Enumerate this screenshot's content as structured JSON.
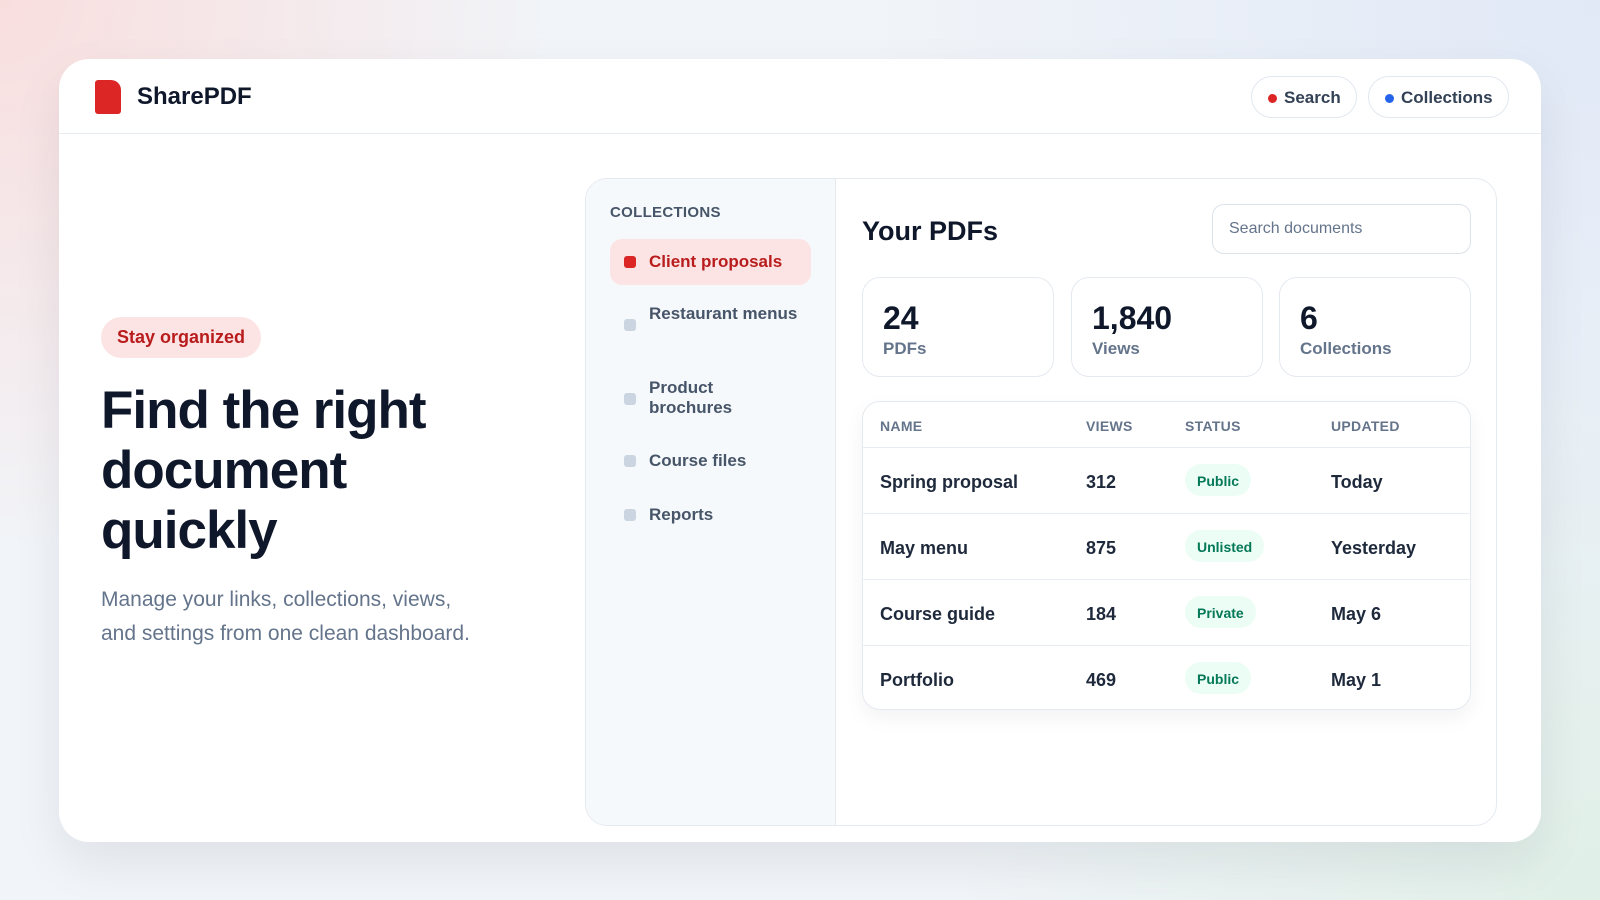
{
  "header": {
    "brand": "SharePDF",
    "nav": [
      "Search",
      "Collections"
    ]
  },
  "hero": {
    "badge": "Stay organized",
    "title": "Find the right document quickly",
    "description": "Manage your links, collections, views, and settings from one clean dashboard."
  },
  "sidebar": {
    "heading": "COLLECTIONS",
    "items": [
      "Client proposals",
      "Restaurant menus",
      "Product brochures",
      "Course files",
      "Reports"
    ]
  },
  "main": {
    "title": "Your PDFs",
    "search_placeholder": "Search documents",
    "stats": [
      {
        "value": "24",
        "label": "PDFs"
      },
      {
        "value": "1,840",
        "label": "Views"
      },
      {
        "value": "6",
        "label": "Collections"
      }
    ]
  },
  "table": {
    "columns": [
      "NAME",
      "VIEWS",
      "STATUS",
      "UPDATED"
    ],
    "rows": [
      [
        "Spring proposal",
        "312",
        "Public",
        "Today"
      ],
      [
        "May menu",
        "875",
        "Unlisted",
        "Yesterday"
      ],
      [
        "Course guide",
        "184",
        "Private",
        "May 6"
      ],
      [
        "Portfolio",
        "469",
        "Public",
        "May 1"
      ]
    ]
  }
}
